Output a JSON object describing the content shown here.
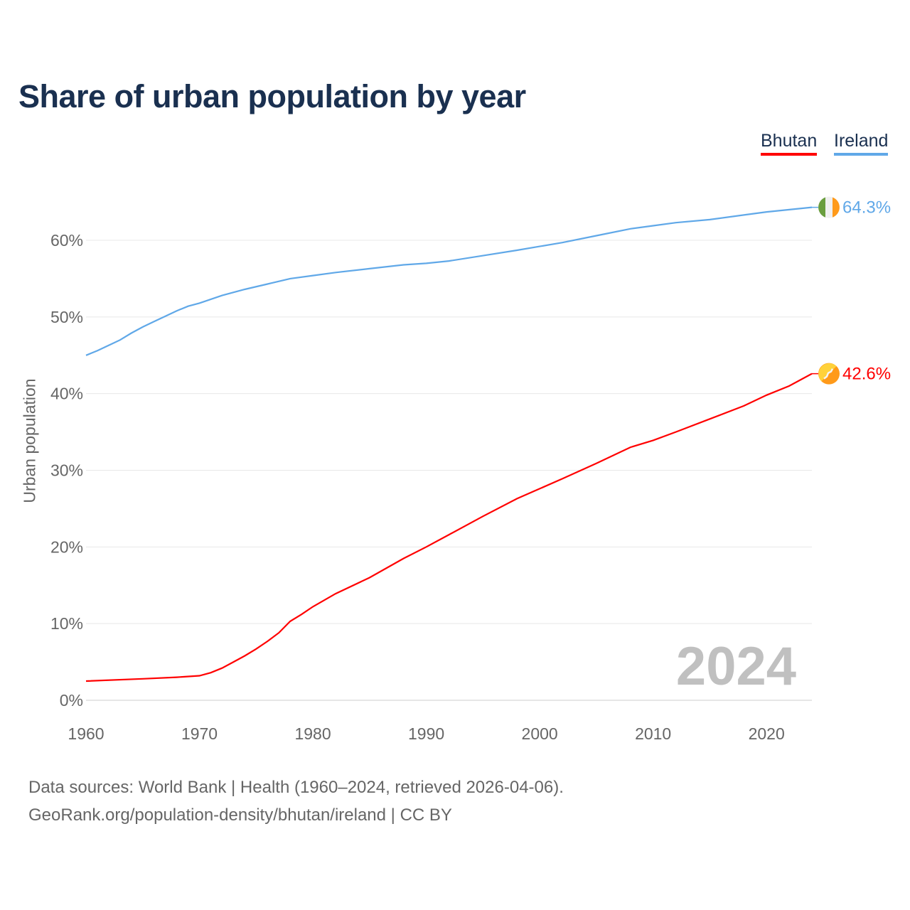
{
  "chart_data": {
    "type": "line",
    "title": "Share of urban population by year",
    "xlabel": "",
    "ylabel": "Urban population",
    "xlim": [
      1960,
      2024
    ],
    "ylim": [
      0,
      65
    ],
    "x_ticks": [
      1960,
      1970,
      1980,
      1990,
      2000,
      2010,
      2020
    ],
    "y_ticks": [
      0,
      10,
      20,
      30,
      40,
      50,
      60
    ],
    "y_tick_labels": [
      "0%",
      "10%",
      "20%",
      "30%",
      "40%",
      "50%",
      "60%"
    ],
    "grid": true,
    "legend_position": "top-right",
    "year_watermark": "2024",
    "series": [
      {
        "name": "Bhutan",
        "color": "#ff0000",
        "end_label": "42.6%",
        "flag": "bhutan-flag",
        "x": [
          1960,
          1965,
          1968,
          1970,
          1971,
          1972,
          1973,
          1974,
          1975,
          1976,
          1977,
          1978,
          1979,
          1980,
          1982,
          1985,
          1988,
          1990,
          1992,
          1995,
          1998,
          2000,
          2002,
          2005,
          2008,
          2010,
          2012,
          2015,
          2018,
          2020,
          2022,
          2024
        ],
        "values": [
          2.5,
          2.8,
          3.0,
          3.2,
          3.6,
          4.2,
          5.0,
          5.8,
          6.7,
          7.7,
          8.8,
          10.3,
          11.2,
          12.2,
          13.9,
          16.0,
          18.5,
          20.0,
          21.6,
          24.0,
          26.3,
          27.6,
          28.9,
          30.9,
          33.0,
          33.9,
          35.0,
          36.7,
          38.4,
          39.8,
          41.0,
          42.6
        ]
      },
      {
        "name": "Ireland",
        "color": "#60a8e8",
        "end_label": "64.3%",
        "flag": "ireland-flag",
        "x": [
          1960,
          1961,
          1962,
          1963,
          1964,
          1965,
          1966,
          1967,
          1968,
          1969,
          1970,
          1972,
          1974,
          1976,
          1978,
          1980,
          1982,
          1985,
          1988,
          1990,
          1992,
          1995,
          1998,
          2000,
          2002,
          2005,
          2008,
          2010,
          2012,
          2015,
          2018,
          2020,
          2022,
          2024
        ],
        "values": [
          45.0,
          45.6,
          46.3,
          47.0,
          47.9,
          48.7,
          49.4,
          50.1,
          50.8,
          51.4,
          51.8,
          52.8,
          53.6,
          54.3,
          55.0,
          55.4,
          55.8,
          56.3,
          56.8,
          57.0,
          57.3,
          58.0,
          58.7,
          59.2,
          59.7,
          60.6,
          61.5,
          61.9,
          62.3,
          62.7,
          63.3,
          63.7,
          64.0,
          64.3
        ]
      }
    ]
  },
  "source_line1": "Data sources: World Bank | Health (1960–2024, retrieved 2026-04-06).",
  "source_line2": "GeoRank.org/population-density/bhutan/ireland | CC BY"
}
